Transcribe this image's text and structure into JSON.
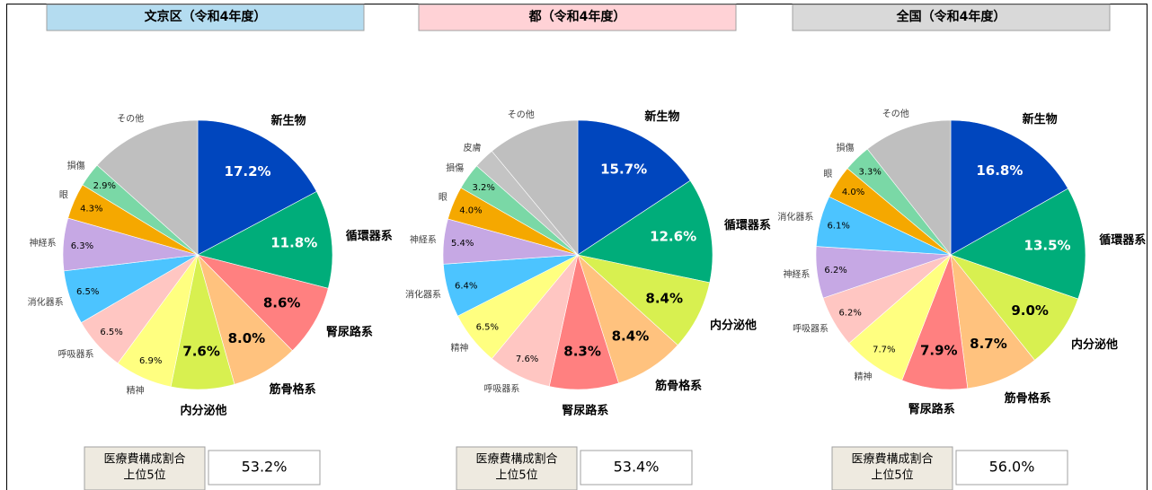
{
  "chart_data": [
    {
      "type": "pie",
      "title": "文京区（令和4年度）",
      "header_color": "#b4dcf0",
      "categories": [
        "新生物",
        "循環器系",
        "腎尿路系",
        "筋骨格系",
        "内分泌他",
        "精神",
        "呼吸器系",
        "消化器系",
        "神経系",
        "眼",
        "損傷",
        "その他"
      ],
      "values": [
        17.2,
        11.8,
        8.6,
        8.0,
        7.6,
        6.9,
        6.5,
        6.5,
        6.3,
        4.3,
        2.9,
        13.4
      ],
      "value_labels": [
        "17.2%",
        "11.8%",
        "8.6%",
        "8.0%",
        "7.6%",
        "6.9%",
        "6.5%",
        "6.5%",
        "6.3%",
        "4.3%",
        "2.9%",
        null
      ],
      "colors": [
        "#0046be",
        "#00ad7a",
        "#ff8080",
        "#ffc27e",
        "#d8f050",
        "#ffff80",
        "#ffc6c2",
        "#4cc4ff",
        "#c6a8e4",
        "#f5a800",
        "#7ad8a6",
        "#bfbfbf"
      ],
      "summary": {
        "label_lines": [
          "医療費構成割合",
          "上位5位"
        ],
        "value": 53.2,
        "value_label": "53.2%"
      }
    },
    {
      "type": "pie",
      "title": "都（令和4年度）",
      "header_color": "#ffd2d6",
      "categories": [
        "新生物",
        "循環器系",
        "内分泌他",
        "筋骨格系",
        "腎尿路系",
        "呼吸器系",
        "精神",
        "消化器系",
        "神経系",
        "眼",
        "損傷",
        "皮膚",
        "その他"
      ],
      "values": [
        15.7,
        12.6,
        8.4,
        8.4,
        8.3,
        7.6,
        6.5,
        6.4,
        5.4,
        4.0,
        3.2,
        2.5,
        11.0
      ],
      "value_labels": [
        "15.7%",
        "12.6%",
        "8.4%",
        "8.4%",
        "8.3%",
        "7.6%",
        "6.5%",
        "6.4%",
        "5.4%",
        "4.0%",
        "3.2%",
        null,
        null
      ],
      "colors": [
        "#0046be",
        "#00ad7a",
        "#d8f050",
        "#ffc27e",
        "#ff8080",
        "#ffc6c2",
        "#ffff80",
        "#4cc4ff",
        "#c6a8e4",
        "#f5a800",
        "#7ad8a6",
        "#c4c4c4",
        "#bfbfbf"
      ],
      "summary": {
        "label_lines": [
          "医療費構成割合",
          "上位5位"
        ],
        "value": 53.4,
        "value_label": "53.4%"
      }
    },
    {
      "type": "pie",
      "title": "全国（令和4年度）",
      "header_color": "#d9d9d9",
      "categories": [
        "新生物",
        "循環器系",
        "内分泌他",
        "筋骨格系",
        "腎尿路系",
        "精神",
        "呼吸器系",
        "神経系",
        "消化器系",
        "眼",
        "損傷",
        "その他"
      ],
      "values": [
        16.8,
        13.5,
        9.0,
        8.7,
        7.9,
        7.7,
        6.2,
        6.2,
        6.1,
        4.0,
        3.3,
        10.6
      ],
      "value_labels": [
        "16.8%",
        "13.5%",
        "9.0%",
        "8.7%",
        "7.9%",
        "7.7%",
        "6.2%",
        "6.2%",
        "6.1%",
        "4.0%",
        "3.3%",
        null
      ],
      "colors": [
        "#0046be",
        "#00ad7a",
        "#d8f050",
        "#ffc27e",
        "#ff8080",
        "#ffff80",
        "#ffc6c2",
        "#c6a8e4",
        "#4cc4ff",
        "#f5a800",
        "#7ad8a6",
        "#bfbfbf"
      ],
      "summary": {
        "label_lines": [
          "医療費構成割合",
          "上位5位"
        ],
        "value": 56.0,
        "value_label": "56.0%"
      }
    }
  ]
}
